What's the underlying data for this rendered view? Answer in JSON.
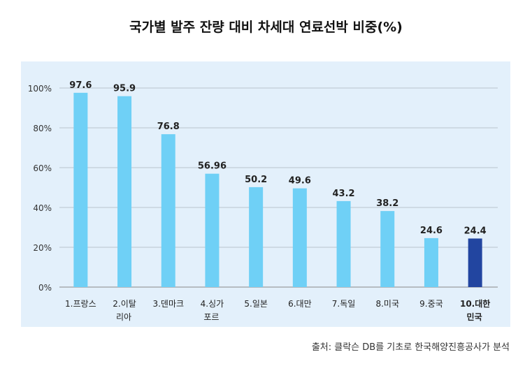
{
  "chart_data": {
    "type": "bar",
    "title": "국가별 발주 잔량 대비 차세대 연료선박 비중(%)",
    "categories": [
      "1.프랑스",
      "2.이탈\n리아",
      "3.덴마크",
      "4.싱가\n포르",
      "5.일본",
      "6.대만",
      "7.독일",
      "8.미국",
      "9.중국",
      "10.대한\n민국"
    ],
    "values": [
      97.6,
      95.9,
      76.8,
      56.96,
      50.2,
      49.6,
      43.2,
      38.2,
      24.6,
      24.4
    ],
    "value_labels": [
      "97.6",
      "95.9",
      "76.8",
      "56.96",
      "50.2",
      "49.6",
      "43.2",
      "38.2",
      "24.6",
      "24.4"
    ],
    "yticks": [
      "0%",
      "20%",
      "40%",
      "60%",
      "80%",
      "100%"
    ],
    "ylim": [
      0,
      100
    ],
    "grid": true,
    "colors": {
      "bar": "#6fd0f6",
      "highlight": "#2245a0",
      "panel": "#e3f0fb"
    },
    "highlight_index": 9,
    "source": "출처: 클락슨 DB를 기초로 한국해양진흥공사가 분석"
  }
}
